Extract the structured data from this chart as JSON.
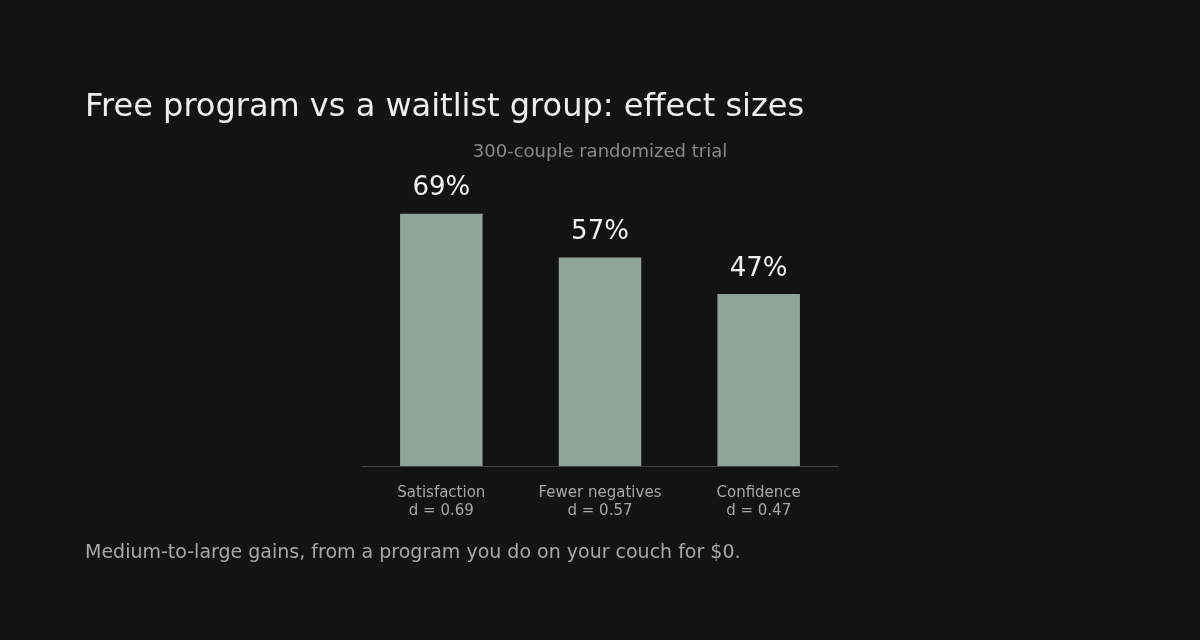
{
  "chart_data": {
    "type": "bar",
    "title": "Free program vs a waitlist group: effect sizes",
    "subtitle": "300-couple randomized trial",
    "categories": [
      "Satisfaction\nd = 0.69",
      "Fewer negatives\nd = 0.57",
      "Confidence\nd = 0.47"
    ],
    "values": [
      69,
      57,
      47
    ],
    "color": "#8fa59b",
    "value_labels": [
      "69%",
      "57%",
      "47%"
    ],
    "annotations": [
      "Medium-to-large gains, from a program you do on your couch for $0."
    ]
  }
}
